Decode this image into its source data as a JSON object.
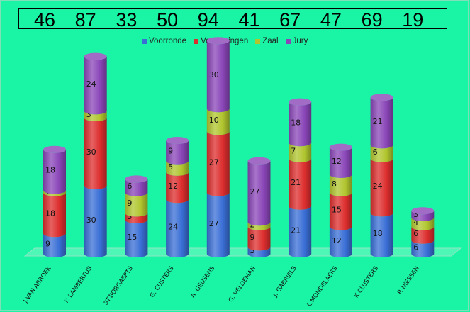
{
  "chart_data": {
    "type": "bar",
    "stacked": true,
    "categories": [
      "J.VAN ABROEK",
      "P. LAMBERTUS",
      "ST.BORGAERTS",
      "G. CUSTERS",
      "A. GEUSENS",
      "G. VELDEMAN",
      "J. GABRIELS",
      "L.MONDELAERS",
      "K.CLUSTERS",
      "P. NIESSEN"
    ],
    "series": [
      {
        "name": "Voorronde",
        "color": "#3a6fd6",
        "values": [
          9,
          30,
          15,
          24,
          27,
          3,
          21,
          12,
          18,
          6
        ]
      },
      {
        "name": "Verenigingen",
        "color": "#dd2e2e",
        "values": [
          18,
          30,
          3,
          12,
          27,
          9,
          21,
          15,
          24,
          6
        ]
      },
      {
        "name": "Zaal",
        "color": "#b0c52e",
        "values": [
          1,
          3,
          9,
          5,
          10,
          2,
          7,
          8,
          6,
          4
        ]
      },
      {
        "name": "Jury",
        "color": "#8a46b8",
        "values": [
          18,
          24,
          6,
          9,
          30,
          27,
          18,
          12,
          21,
          3
        ]
      }
    ],
    "totals": [
      "46",
      "87",
      "33",
      "50",
      "94",
      "41",
      "67",
      "47",
      "69",
      "19"
    ],
    "legend_position": "top",
    "grid": false
  }
}
